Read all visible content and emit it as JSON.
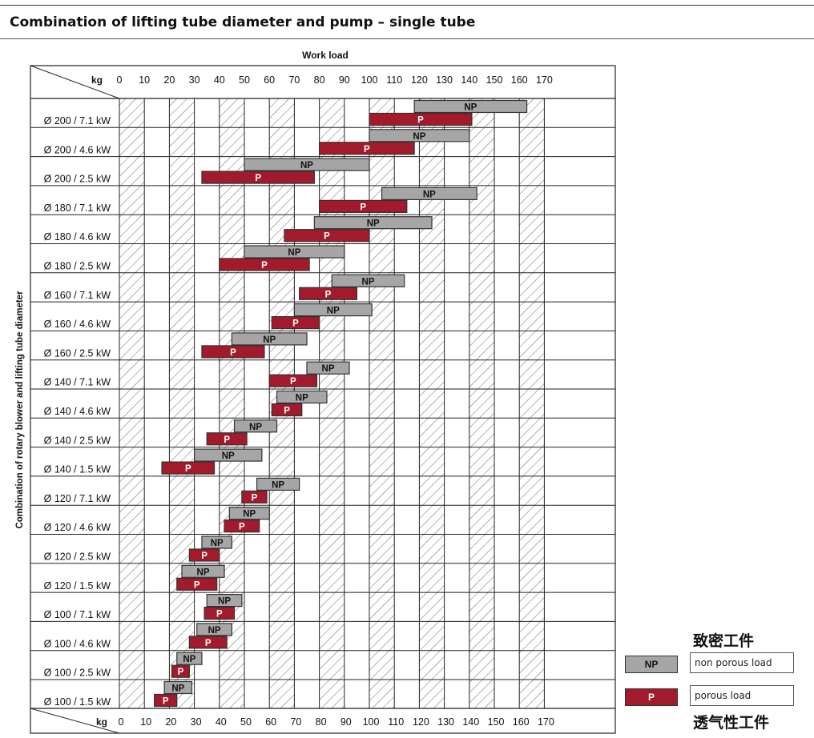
{
  "title": "Combination of lifting tube diameter and pump – single tube",
  "colors": {
    "np": "#a6a6a6",
    "p": "#a31a2c",
    "grid": "#222222"
  },
  "chart_data": {
    "type": "bar",
    "orientation": "horizontal-range",
    "xlabel": "Work load",
    "ylabel": "Combination of rotary blower and lifting tube diameter",
    "unit": "kg",
    "xlim": [
      0,
      170
    ],
    "x_ticks": [
      0,
      10,
      20,
      30,
      40,
      50,
      60,
      70,
      80,
      90,
      100,
      110,
      120,
      130,
      140,
      150,
      160,
      170
    ],
    "hatched_columns": true,
    "legend_position": "bottom-right",
    "series": [
      {
        "name": "NP",
        "legend_label": "non porous load",
        "legend_note": "致密工件"
      },
      {
        "name": "P",
        "legend_label": "porous load",
        "legend_note": "透气性工件"
      }
    ],
    "rows": [
      {
        "label": "Ø 200 / 7.1 kW",
        "np": [
          118,
          163
        ],
        "p": [
          100,
          141
        ]
      },
      {
        "label": "Ø 200 / 4.6 kW",
        "np": [
          100,
          140
        ],
        "p": [
          80,
          118
        ]
      },
      {
        "label": "Ø 200 / 2.5 kW",
        "np": [
          50,
          100
        ],
        "p": [
          33,
          78
        ]
      },
      {
        "label": "Ø 180 / 7.1 kW",
        "np": [
          105,
          143
        ],
        "p": [
          80,
          115
        ]
      },
      {
        "label": "Ø 180 / 4.6 kW",
        "np": [
          78,
          125
        ],
        "p": [
          66,
          100
        ]
      },
      {
        "label": "Ø 180 / 2.5 kW",
        "np": [
          50,
          90
        ],
        "p": [
          40,
          76
        ]
      },
      {
        "label": "Ø 160 / 7.1 kW",
        "np": [
          85,
          114
        ],
        "p": [
          72,
          95
        ]
      },
      {
        "label": "Ø 160 / 4.6 kW",
        "np": [
          70,
          101
        ],
        "p": [
          61,
          80
        ]
      },
      {
        "label": "Ø 160 / 2.5 kW",
        "np": [
          45,
          75
        ],
        "p": [
          33,
          58
        ]
      },
      {
        "label": "Ø 140 / 7.1 kW",
        "np": [
          75,
          92
        ],
        "p": [
          60,
          79
        ]
      },
      {
        "label": "Ø 140 / 4.6 kW",
        "np": [
          63,
          83
        ],
        "p": [
          61,
          73
        ]
      },
      {
        "label": "Ø 140 / 2.5 kW",
        "np": [
          46,
          63
        ],
        "p": [
          35,
          51
        ]
      },
      {
        "label": "Ø 140 / 1.5 kW",
        "np": [
          30,
          57
        ],
        "p": [
          17,
          38
        ]
      },
      {
        "label": "Ø 120 / 7.1 kW",
        "np": [
          55,
          72
        ],
        "p": [
          49,
          59
        ]
      },
      {
        "label": "Ø 120 / 4.6 kW",
        "np": [
          44,
          60
        ],
        "p": [
          42,
          56
        ]
      },
      {
        "label": "Ø 120 / 2.5 kW",
        "np": [
          33,
          45
        ],
        "p": [
          28,
          40
        ]
      },
      {
        "label": "Ø 120 / 1.5 kW",
        "np": [
          25,
          42
        ],
        "p": [
          23,
          39
        ]
      },
      {
        "label": "Ø 100 / 7.1 kW",
        "np": [
          35,
          49
        ],
        "p": [
          34,
          46
        ]
      },
      {
        "label": "Ø 100 / 4.6 kW",
        "np": [
          31,
          45
        ],
        "p": [
          28,
          43
        ]
      },
      {
        "label": "Ø 100 / 2.5 kW",
        "np": [
          23,
          33
        ],
        "p": [
          21,
          28
        ]
      },
      {
        "label": "Ø 100 / 1.5 kW",
        "np": [
          18,
          29
        ],
        "p": [
          14,
          23
        ]
      }
    ]
  }
}
